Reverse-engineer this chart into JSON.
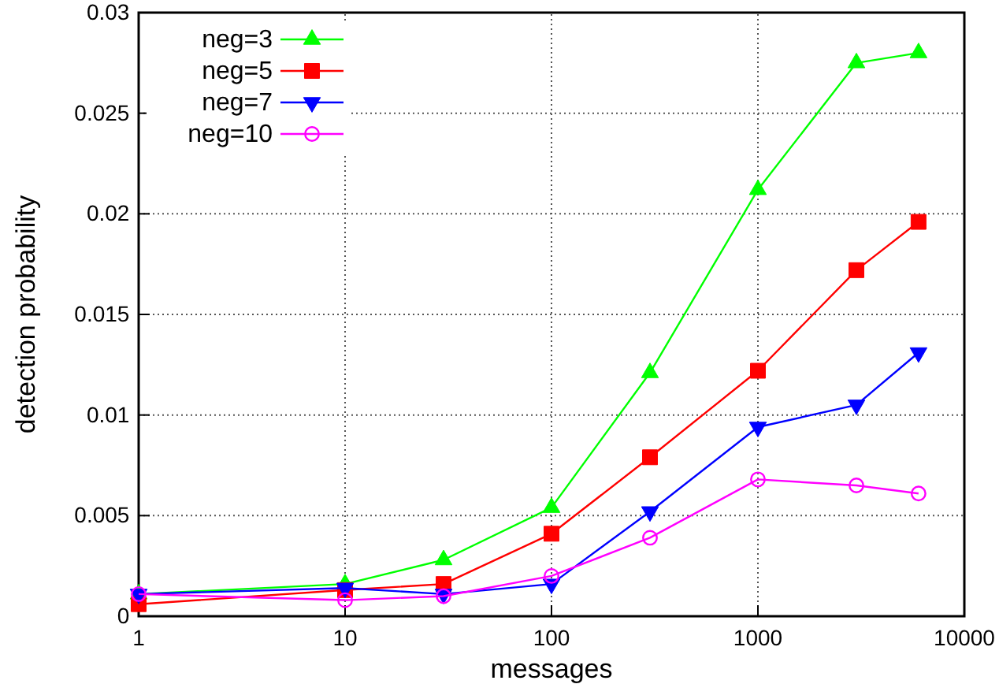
{
  "chart_data": {
    "type": "line",
    "xlabel": "messages",
    "ylabel": "detection probability",
    "log": "x",
    "grid": true,
    "legend": "top left",
    "xlim": [
      1,
      10000
    ],
    "xticks": [
      1,
      10,
      100,
      1000,
      10000
    ],
    "ylim": [
      0,
      0.03
    ],
    "yticks": [
      0,
      0.005,
      0.01,
      0.015,
      0.02,
      0.025,
      0.03
    ],
    "x": [
      1,
      10,
      30,
      100,
      300,
      1000,
      3000,
      6000
    ],
    "series": [
      {
        "name": "neg=3",
        "color": "#00ff00",
        "marker": "triangle",
        "values": [
          0.0011,
          0.0016,
          0.0028,
          0.0054,
          0.0121,
          0.0212,
          0.0275,
          0.028
        ]
      },
      {
        "name": "neg=5",
        "color": "#ff0000",
        "marker": "square",
        "values": [
          0.0006,
          0.0013,
          0.0016,
          0.0041,
          0.0079,
          0.0122,
          0.0172,
          0.0196
        ]
      },
      {
        "name": "neg=7",
        "color": "#0000ff",
        "marker": "triangle-down",
        "values": [
          0.0011,
          0.0014,
          0.0011,
          0.0016,
          0.0052,
          0.0094,
          0.0105,
          0.0131
        ]
      },
      {
        "name": "neg=10",
        "color": "#ff00ff",
        "marker": "circle-open",
        "values": [
          0.0011,
          0.0008,
          0.001,
          0.002,
          0.0039,
          0.0068,
          0.0065,
          0.0061
        ]
      }
    ]
  }
}
